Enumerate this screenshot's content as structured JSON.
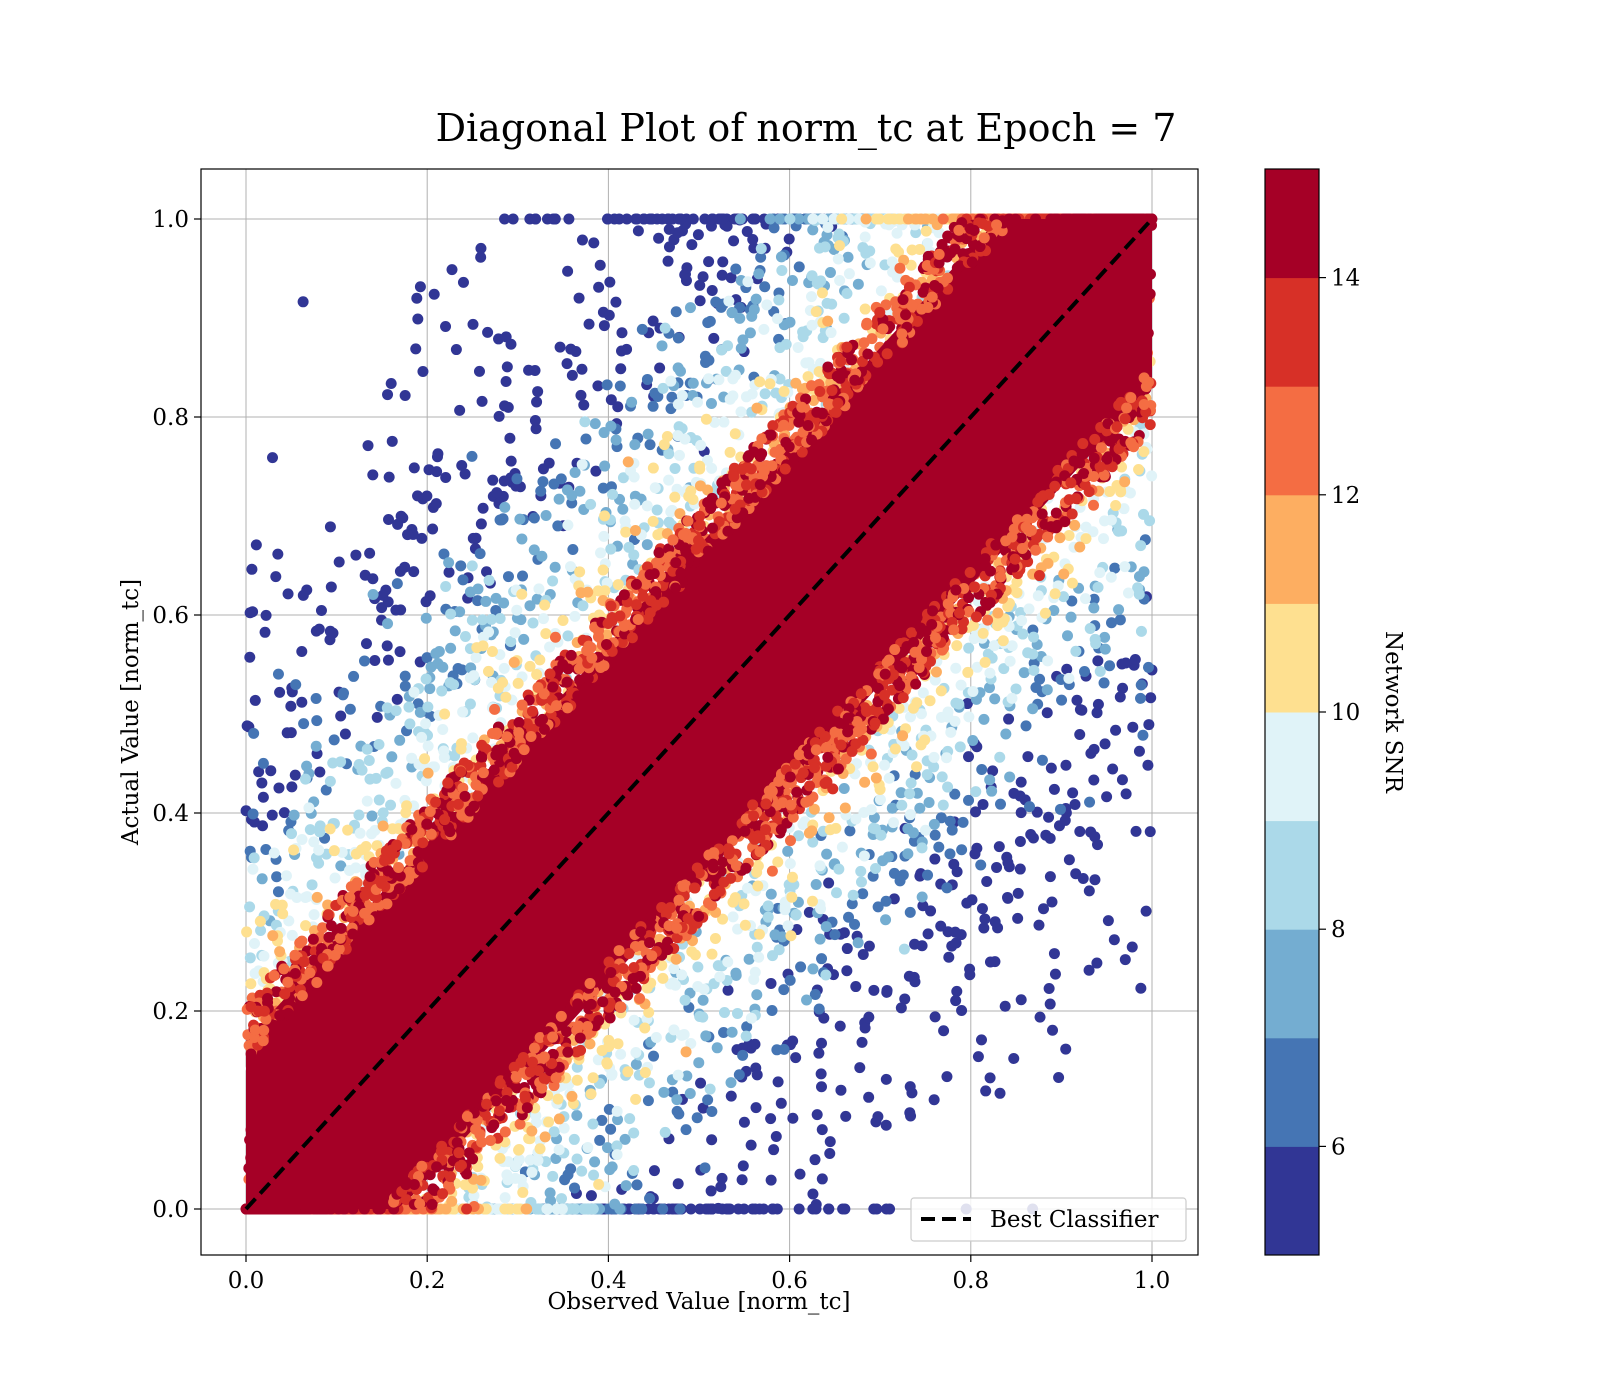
{
  "chart_data": {
    "type": "scatter",
    "title": "Diagonal Plot of norm_tc at Epoch = 7",
    "xlabel": "Observed Value [norm_tc]",
    "ylabel": "Actual Value [norm_tc]",
    "xlim": [
      -0.05,
      1.05
    ],
    "ylim": [
      -0.05,
      1.05
    ],
    "xticks": [
      0.0,
      0.2,
      0.4,
      0.6,
      0.8,
      1.0
    ],
    "yticks": [
      0.0,
      0.2,
      0.4,
      0.6,
      0.8,
      1.0
    ],
    "xtick_labels": [
      "0.0",
      "0.2",
      "0.4",
      "0.6",
      "0.8",
      "1.0"
    ],
    "ytick_labels": [
      "0.0",
      "0.2",
      "0.4",
      "0.6",
      "0.8",
      "1.0"
    ],
    "grid": true,
    "reference_line": {
      "name": "Best Classifier",
      "x": [
        0.0,
        1.0
      ],
      "y": [
        0.0,
        1.0
      ],
      "style": "dashed",
      "color": "#000000"
    },
    "legend": {
      "position": "bottom-right",
      "entries": [
        "Best Classifier"
      ]
    },
    "colorbar": {
      "label": "Network SNR",
      "range": [
        5,
        15
      ],
      "ticks": [
        6,
        8,
        10,
        12,
        14
      ],
      "tick_labels": [
        "6",
        "8",
        "10",
        "12",
        "14"
      ],
      "colors": [
        "#313695",
        "#4575b4",
        "#74add1",
        "#abd9e9",
        "#e0f3f8",
        "#fee090",
        "#fdae61",
        "#f46d43",
        "#d73027",
        "#a50026"
      ]
    },
    "series": [
      {
        "color_value": 15,
        "description_points": [
          [
            0.01,
            0.0
          ],
          [
            1.0,
            1.0
          ]
        ]
      }
    ]
  }
}
